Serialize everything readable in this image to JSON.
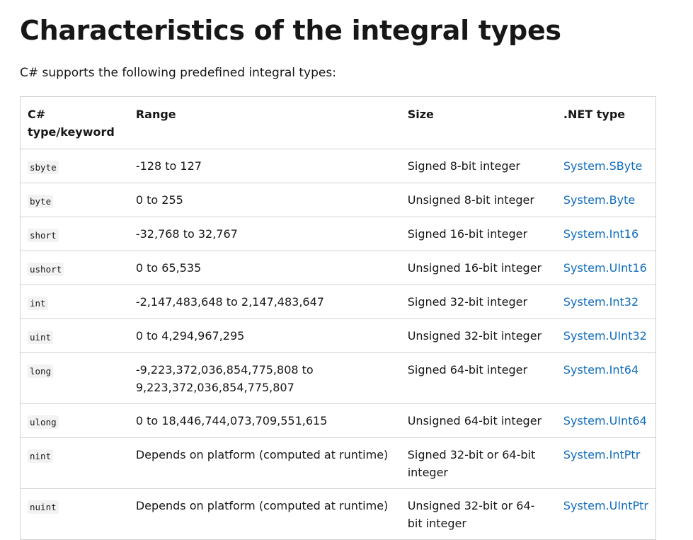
{
  "page": {
    "title": "Characteristics of the integral types",
    "intro": "C# supports the following predefined integral types:"
  },
  "table": {
    "headers": {
      "keyword": "C# type/keyword",
      "range": "Range",
      "size": "Size",
      "net_type": ".NET type"
    },
    "rows": [
      {
        "keyword": "sbyte",
        "range": "-128 to 127",
        "size": "Signed 8-bit integer",
        "net_type": "System.SByte"
      },
      {
        "keyword": "byte",
        "range": "0 to 255",
        "size": "Unsigned 8-bit integer",
        "net_type": "System.Byte"
      },
      {
        "keyword": "short",
        "range": "-32,768 to 32,767",
        "size": "Signed 16-bit integer",
        "net_type": "System.Int16"
      },
      {
        "keyword": "ushort",
        "range": "0 to 65,535",
        "size": "Unsigned 16-bit integer",
        "net_type": "System.UInt16"
      },
      {
        "keyword": "int",
        "range": "-2,147,483,648 to 2,147,483,647",
        "size": "Signed 32-bit integer",
        "net_type": "System.Int32"
      },
      {
        "keyword": "uint",
        "range": "0 to 4,294,967,295",
        "size": "Unsigned 32-bit integer",
        "net_type": "System.UInt32"
      },
      {
        "keyword": "long",
        "range": "-9,223,372,036,854,775,808 to 9,223,372,036,854,775,807",
        "size": "Signed 64-bit integer",
        "net_type": "System.Int64"
      },
      {
        "keyword": "ulong",
        "range": "0 to 18,446,744,073,709,551,615",
        "size": "Unsigned 64-bit integer",
        "net_type": "System.UInt64"
      },
      {
        "keyword": "nint",
        "range": "Depends on platform (computed at runtime)",
        "size": "Signed 32-bit or 64-bit integer",
        "net_type": "System.IntPtr"
      },
      {
        "keyword": "nuint",
        "range": "Depends on platform (computed at runtime)",
        "size": "Unsigned 32-bit or 64-bit integer",
        "net_type": "System.UIntPtr"
      }
    ]
  },
  "colors": {
    "link": "#0f6cbd",
    "text": "#171717",
    "border": "#d1d1d1",
    "code_background": "#f2f2f2"
  }
}
